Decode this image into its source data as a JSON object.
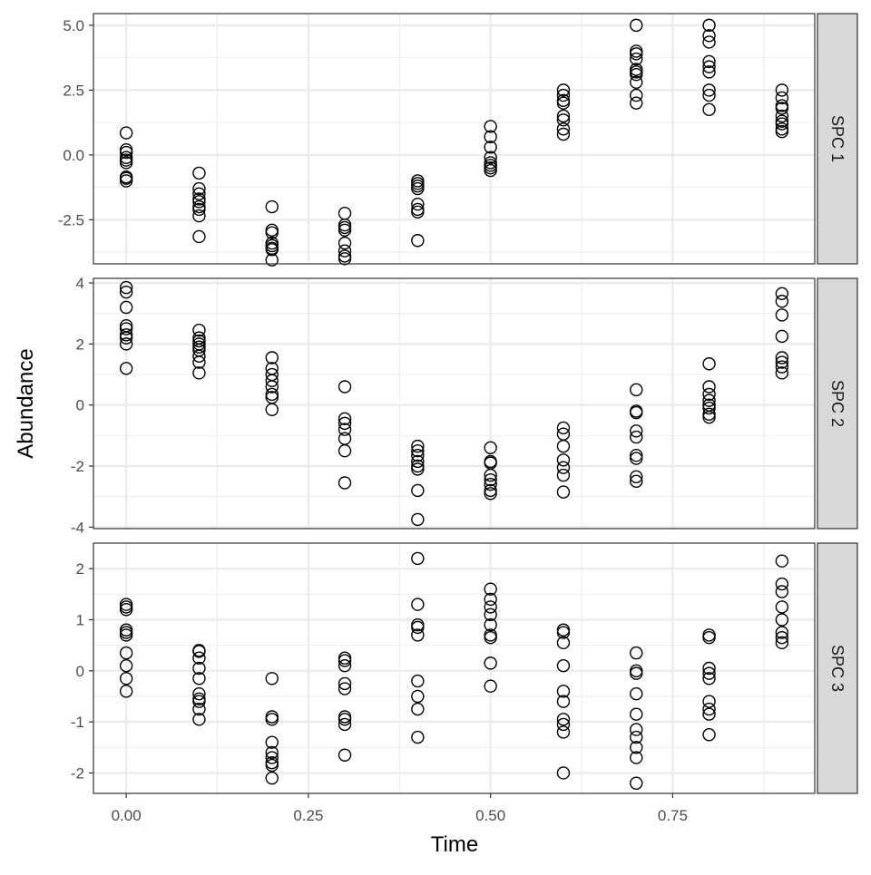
{
  "chart_data": {
    "type": "scatter",
    "xlabel": "Time",
    "ylabel": "Abundance",
    "xlim": [
      -0.045,
      0.945
    ],
    "x_ticks": [
      0.0,
      0.25,
      0.5,
      0.75
    ],
    "x_tick_labels": [
      "0.00",
      "0.25",
      "0.50",
      "0.75"
    ],
    "grid": true,
    "marker": "open-circle",
    "colors": {
      "panel_border": "#333333",
      "grid_major": "#ebebeb",
      "strip_fill": "#d9d9d9",
      "point_stroke": "#000000"
    },
    "panels": [
      {
        "name": "SPC 1",
        "ylim": [
          -4.2,
          5.45
        ],
        "y_ticks": [
          -2.5,
          0.0,
          2.5,
          5.0
        ],
        "y_tick_labels": [
          "-2.5",
          "0.0",
          "2.5",
          "5.0"
        ],
        "points": [
          {
            "x": 0.0,
            "y": [
              0.85,
              0.2,
              0.1,
              -0.1,
              -0.2,
              -0.3,
              -0.85,
              -0.9,
              -1.0
            ]
          },
          {
            "x": 0.1,
            "y": [
              -0.7,
              -1.3,
              -1.5,
              -1.7,
              -1.8,
              -2.0,
              -2.1,
              -2.35,
              -3.15
            ]
          },
          {
            "x": 0.2,
            "y": [
              -2.0,
              -2.9,
              -3.0,
              -3.4,
              -3.5,
              -3.6,
              -3.65,
              -4.05
            ]
          },
          {
            "x": 0.3,
            "y": [
              -2.25,
              -2.7,
              -2.8,
              -2.9,
              -3.4,
              -3.7,
              -3.9,
              -4.0
            ]
          },
          {
            "x": 0.4,
            "y": [
              -1.0,
              -1.1,
              -1.2,
              -1.3,
              -1.9,
              -2.1,
              -2.2,
              -3.3
            ]
          },
          {
            "x": 0.5,
            "y": [
              1.1,
              0.7,
              0.3,
              -0.1,
              -0.3,
              -0.4,
              -0.5,
              -0.6
            ]
          },
          {
            "x": 0.6,
            "y": [
              2.5,
              2.3,
              2.1,
              2.0,
              1.5,
              1.35,
              1.0,
              0.8
            ]
          },
          {
            "x": 0.7,
            "y": [
              5.0,
              4.0,
              3.9,
              3.7,
              3.3,
              3.2,
              3.1,
              2.8,
              2.3,
              2.0
            ]
          },
          {
            "x": 0.8,
            "y": [
              5.0,
              4.6,
              4.35,
              3.6,
              3.4,
              3.2,
              2.5,
              2.3,
              1.75
            ]
          },
          {
            "x": 0.9,
            "y": [
              2.5,
              2.2,
              1.9,
              1.8,
              1.5,
              1.3,
              1.2,
              1.0,
              0.9
            ]
          }
        ]
      },
      {
        "name": "SPC 2",
        "ylim": [
          -4.05,
          4.15
        ],
        "y_ticks": [
          -4,
          -2,
          0,
          2,
          4
        ],
        "y_tick_labels": [
          "-4",
          "-2",
          "0",
          "2",
          "4"
        ],
        "points": [
          {
            "x": 0.0,
            "y": [
              3.85,
              3.7,
              3.2,
              2.6,
              2.5,
              2.3,
              2.2,
              2.0,
              1.2
            ]
          },
          {
            "x": 0.1,
            "y": [
              2.45,
              2.2,
              2.1,
              2.0,
              1.9,
              1.8,
              1.6,
              1.4,
              1.05
            ]
          },
          {
            "x": 0.2,
            "y": [
              1.55,
              1.2,
              1.0,
              0.8,
              0.6,
              0.35,
              0.25,
              -0.15
            ]
          },
          {
            "x": 0.3,
            "y": [
              0.6,
              -0.45,
              -0.6,
              -0.8,
              -1.1,
              -1.5,
              -2.55
            ]
          },
          {
            "x": 0.4,
            "y": [
              -1.35,
              -1.5,
              -1.65,
              -1.85,
              -2.0,
              -2.1,
              -2.8,
              -3.75
            ]
          },
          {
            "x": 0.5,
            "y": [
              -1.4,
              -1.85,
              -1.9,
              -2.3,
              -2.45,
              -2.6,
              -2.8,
              -2.9
            ]
          },
          {
            "x": 0.6,
            "y": [
              -0.75,
              -0.95,
              -1.35,
              -1.8,
              -2.05,
              -2.3,
              -2.85
            ]
          },
          {
            "x": 0.7,
            "y": [
              0.5,
              -0.2,
              -0.25,
              -0.85,
              -1.05,
              -1.65,
              -1.75,
              -2.35,
              -2.5
            ]
          },
          {
            "x": 0.8,
            "y": [
              1.35,
              0.6,
              0.35,
              0.15,
              0.0,
              -0.1,
              -0.3,
              -0.4
            ]
          },
          {
            "x": 0.9,
            "y": [
              3.65,
              3.4,
              2.95,
              2.25,
              1.55,
              1.4,
              1.25,
              1.05
            ]
          }
        ]
      },
      {
        "name": "SPC 3",
        "ylim": [
          -2.4,
          2.5
        ],
        "y_ticks": [
          -2,
          -1,
          0,
          1,
          2
        ],
        "y_tick_labels": [
          "-2",
          "-1",
          "0",
          "1",
          "2"
        ],
        "points": [
          {
            "x": 0.0,
            "y": [
              1.3,
              1.25,
              1.2,
              0.8,
              0.75,
              0.7,
              0.35,
              0.1,
              -0.15,
              -0.4
            ]
          },
          {
            "x": 0.1,
            "y": [
              0.4,
              0.38,
              0.25,
              0.05,
              -0.15,
              -0.45,
              -0.55,
              -0.6,
              -0.75,
              -0.95
            ]
          },
          {
            "x": 0.2,
            "y": [
              -0.15,
              -0.9,
              -0.95,
              -1.4,
              -1.6,
              -1.7,
              -1.8,
              -1.85,
              -2.1
            ]
          },
          {
            "x": 0.3,
            "y": [
              0.25,
              0.2,
              0.1,
              -0.25,
              -0.35,
              -0.9,
              -0.95,
              -1.05,
              -1.65
            ]
          },
          {
            "x": 0.4,
            "y": [
              2.2,
              1.3,
              0.9,
              0.85,
              0.7,
              -0.2,
              -0.5,
              -0.75,
              -1.3
            ]
          },
          {
            "x": 0.5,
            "y": [
              1.6,
              1.4,
              1.25,
              1.1,
              0.9,
              0.7,
              0.65,
              0.15,
              -0.3
            ]
          },
          {
            "x": 0.6,
            "y": [
              0.8,
              0.75,
              0.55,
              0.1,
              -0.4,
              -0.6,
              -0.95,
              -1.05,
              -1.2,
              -2.0
            ]
          },
          {
            "x": 0.7,
            "y": [
              0.35,
              0.0,
              -0.05,
              -0.45,
              -0.85,
              -1.15,
              -1.3,
              -1.5,
              -1.7,
              -2.2
            ]
          },
          {
            "x": 0.8,
            "y": [
              0.7,
              0.65,
              0.05,
              -0.05,
              -0.15,
              -0.6,
              -0.75,
              -0.85,
              -1.25
            ]
          },
          {
            "x": 0.9,
            "y": [
              2.15,
              1.7,
              1.55,
              1.25,
              1.0,
              0.75,
              0.65,
              0.55
            ]
          }
        ]
      }
    ]
  }
}
